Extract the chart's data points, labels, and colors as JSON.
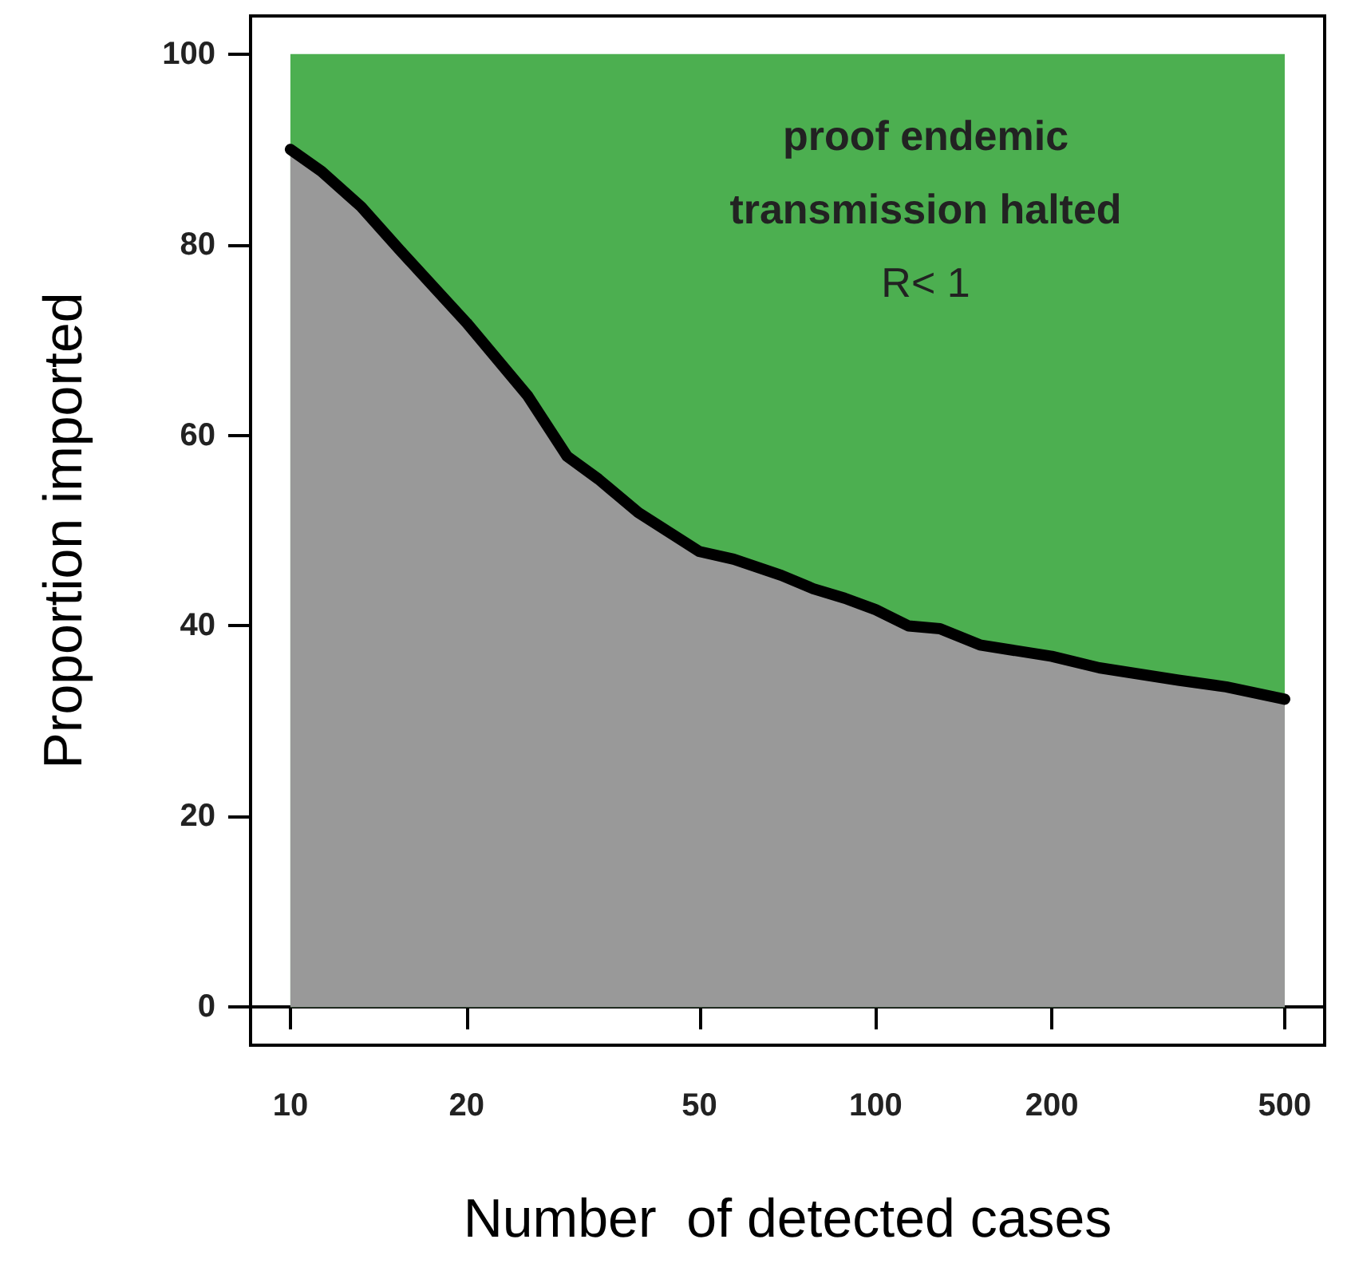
{
  "chart_data": {
    "type": "area",
    "xlabel": "Number  of detected cases",
    "ylabel": "Proportion imported",
    "log": "x",
    "xlim": [
      8.55,
      585
    ],
    "ylim": [
      -4,
      104
    ],
    "xticks": [
      10,
      20,
      50,
      100,
      200,
      500
    ],
    "yticks": [
      0,
      20,
      40,
      60,
      80,
      100
    ],
    "bands": [
      {
        "axis": "x",
        "from": 10,
        "to": 500,
        "color": "#4caf50"
      }
    ],
    "annotations": [
      "proof endemic",
      "transmission halted",
      "R< 1"
    ],
    "series": [
      {
        "color": "#999999",
        "x": [
          10,
          11.3,
          13.2,
          15.4,
          20,
          25.4,
          29.7,
          33.6,
          39.3,
          50,
          57.2,
          69,
          78.2,
          88.5,
          100,
          113.8,
          128.8,
          150.7,
          200,
          241,
          329,
          397,
          500
        ],
        "values": [
          90,
          87.7,
          84,
          79.4,
          71.8,
          64.2,
          57.8,
          55.4,
          51.9,
          47.8,
          47,
          45.3,
          43.9,
          42.9,
          41.7,
          40,
          39.7,
          38,
          36.8,
          35.6,
          34.3,
          33.6,
          32.3
        ]
      }
    ]
  }
}
